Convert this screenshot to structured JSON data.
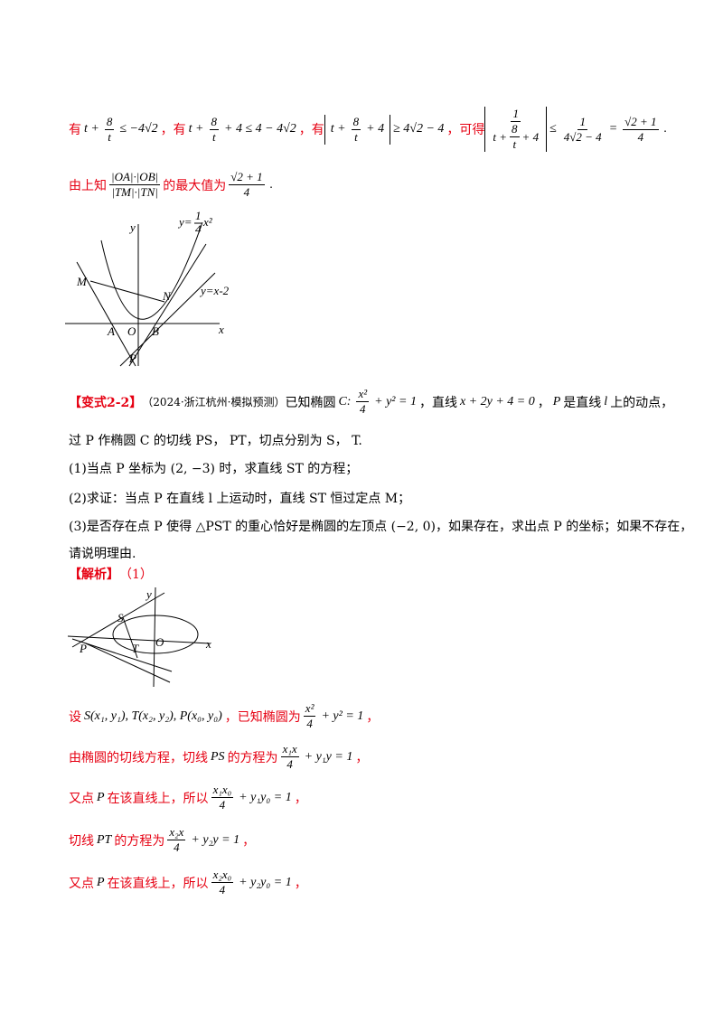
{
  "intro": {
    "line1": {
      "p1": "有",
      "m1_lead": "t +",
      "m1_num": "8",
      "m1_den": "t",
      "m1_tail": "≤ −4√2",
      "p2": "，有",
      "m2_lead": "t +",
      "m2_num": "8",
      "m2_den": "t",
      "m2_tail": "+ 4 ≤ 4 − 4√2",
      "p3": "，有",
      "m3_lead": "t +",
      "m3_num": "8",
      "m3_den": "t",
      "m3_tail": "+ 4",
      "m3_after": "≥ 4√2 − 4",
      "p4": "，可得",
      "m4_num": "1",
      "m4_den_lead": "t +",
      "m4_den_num": "8",
      "m4_den_den": "t",
      "m4_den_tail": "+ 4",
      "m4_rel": "≤",
      "m4_r_num": "1",
      "m4_r_den": "4√2 − 4",
      "m4_eq": "=",
      "m4_v_num": "√2 + 1",
      "m4_v_den": "4",
      "end": "."
    },
    "line2": {
      "p1": "由上知",
      "num": "|OA|·|OB|",
      "den": "|TM|·|TN|",
      "p2": "的最大值为",
      "v_num": "√2 + 1",
      "v_den": "4",
      "end": "."
    }
  },
  "figure1": {
    "curve_lead": "y=",
    "curve_num": "1",
    "curve_den": "4",
    "curve_tail": "x²",
    "line_label": "y=x-2",
    "labels": [
      "M",
      "N",
      "A",
      "O",
      "B",
      "P",
      "x",
      "y"
    ]
  },
  "problem": {
    "tag": "【变式2-2】",
    "source": "（2024·浙江杭州·模拟预测）",
    "s1": "已知椭圆",
    "c": "C:",
    "e_num": "x²",
    "e_den": "4",
    "e_tail": "+ y² = 1",
    "s2": "，直线",
    "line_eq": "x + 2y + 4 = 0",
    "s3": "，",
    "p": "P",
    "s4": "是直线",
    "l": "l",
    "s5": "上的动点，",
    "line2": "过 P 作椭圆 C 的切线 PS， PT，切点分别为 S， T.",
    "q1": "(1)当点 P 坐标为 (2, −3) 时，求直线 ST 的方程；",
    "q2": "(2)求证：当点 P 在直线 l 上运动时，直线 ST 恒过定点 M；",
    "q3": "(3)是否存在点 P 使得 △PST 的重心恰好是椭圆的左顶点 (−2, 0)，如果存在，求出点 P 的坐标；如果不存在，",
    "q3b": "请说明理由."
  },
  "solution": {
    "tag": "【解析】",
    "part": "（1）",
    "figure_labels": [
      "y",
      "S",
      "P",
      "T",
      "O",
      "x"
    ],
    "l1": {
      "p1": "设",
      "pts": "S(x₁, y₁), T(x₂, y₂), P(x₀, y₀)",
      "p2": "，已知椭圆为",
      "num": "x²",
      "den": "4",
      "tail": "+ y² = 1",
      "end": "，"
    },
    "l2": {
      "p1": "由椭圆的切线方程，切线",
      "m": "PS",
      "p2": "的方程为",
      "num": "x₁x",
      "den": "4",
      "tail": "+ y₁y = 1",
      "end": "，"
    },
    "l3": {
      "p1": "又点",
      "m": "P",
      "p2": "在该直线上，所以",
      "num": "x₁x₀",
      "den": "4",
      "tail": "+ y₁y₀ = 1",
      "end": "，"
    },
    "l4": {
      "p1": "切线",
      "m": "PT",
      "p2": "的方程为",
      "num": "x₂x",
      "den": "4",
      "tail": "+ y₂y = 1",
      "end": "，"
    },
    "l5": {
      "p1": "又点",
      "m": "P",
      "p2": "在该直线上，所以",
      "num": "x₂x₀",
      "den": "4",
      "tail": "+ y₂y₀ = 1",
      "end": "，"
    }
  }
}
